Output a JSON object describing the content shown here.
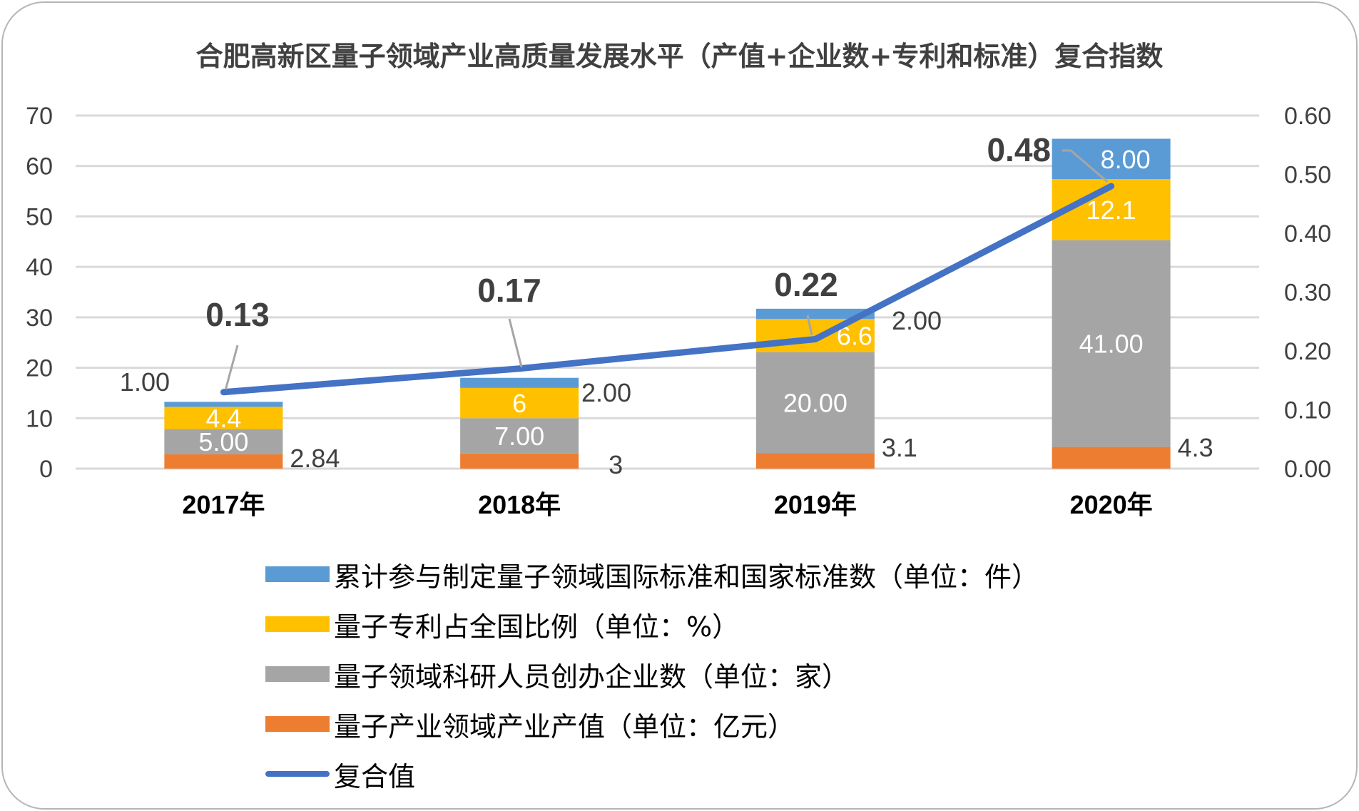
{
  "chart_data": {
    "type": "bar",
    "subtype": "stacked-bar-with-line-secondary-axis",
    "title": "合肥高新区量子领域产业高质量发展水平（产值+企业数+专利和标准）复合指数",
    "categories": [
      "2017年",
      "2018年",
      "2019年",
      "2020年"
    ],
    "y_left": {
      "range": [
        0,
        70
      ],
      "ticks": [
        "0",
        "10",
        "20",
        "30",
        "40",
        "50",
        "60",
        "70"
      ],
      "tick_values": [
        0,
        10,
        20,
        30,
        40,
        50,
        60,
        70
      ]
    },
    "y_right": {
      "range": [
        0,
        0.6
      ],
      "ticks": [
        "0.00",
        "0.10",
        "0.20",
        "0.30",
        "0.40",
        "0.50",
        "0.60"
      ],
      "tick_values": [
        0,
        0.1,
        0.2,
        0.3,
        0.4,
        0.5,
        0.6
      ]
    },
    "grid": true,
    "legend_position": "bottom",
    "series": [
      {
        "name": "量子产业领域产业产值（单位：亿元）",
        "type": "bar",
        "axis": "left",
        "color": "#ED7D31",
        "values": [
          2.84,
          3,
          3.1,
          4.3
        ],
        "labels": [
          "2.84",
          "3",
          "3.1",
          "4.3"
        ],
        "label_style": "outside"
      },
      {
        "name": "量子领域科研人员创办企业数（单位：家）",
        "type": "bar",
        "axis": "left",
        "color": "#A5A5A5",
        "values": [
          5,
          7,
          20,
          41
        ],
        "labels": [
          "5.00",
          "7.00",
          "20.00",
          "41.00"
        ],
        "label_style": "inside"
      },
      {
        "name": "量子专利占全国比例（单位：%）",
        "type": "bar",
        "axis": "left",
        "color": "#FFC000",
        "values": [
          4.4,
          6,
          6.6,
          12.1
        ],
        "labels": [
          "4.4",
          "6",
          "6.6",
          "12.1"
        ],
        "label_style": "inside"
      },
      {
        "name": "累计参与制定量子领域国际标准和国家标准数（单位：件）",
        "type": "bar",
        "axis": "left",
        "color": "#5B9BD5",
        "values": [
          1,
          2,
          2,
          8
        ],
        "labels": [
          "1.00",
          "2.00",
          "2.00",
          "8.00"
        ],
        "label_style": "mixed"
      },
      {
        "name": "复合值",
        "type": "line",
        "axis": "right",
        "color": "#4472C4",
        "values": [
          0.13,
          0.17,
          0.22,
          0.48
        ],
        "labels": [
          "0.13",
          "0.17",
          "0.22",
          "0.48"
        ]
      }
    ],
    "legend_order": [
      3,
      2,
      1,
      0,
      4
    ]
  }
}
